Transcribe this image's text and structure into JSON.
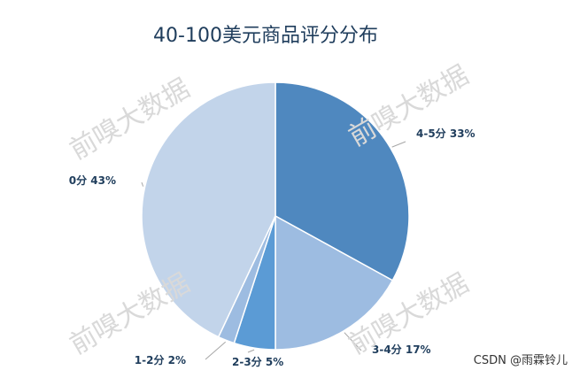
{
  "title": "40-100美元商品评分分布",
  "watermark_text": "前嗅大数据",
  "credit": "CSDN @雨霖铃儿",
  "chart_data": {
    "type": "pie",
    "title": "40-100美元商品评分分布",
    "categories": [
      "4-5分",
      "3-4分",
      "2-3分",
      "1-2分",
      "0分"
    ],
    "values": [
      33,
      17,
      5,
      2,
      43
    ],
    "labels": [
      "4-5分 33%",
      "3-4分 17%",
      "2-3分 5%",
      "1-2分 2%",
      "0分 43%"
    ],
    "colors": [
      "#4f88bf",
      "#9dbce1",
      "#5b9bd5",
      "#9dbce1",
      "#c2d4ea"
    ],
    "start": "12 o'clock",
    "direction": "clockwise",
    "legend": "none"
  }
}
